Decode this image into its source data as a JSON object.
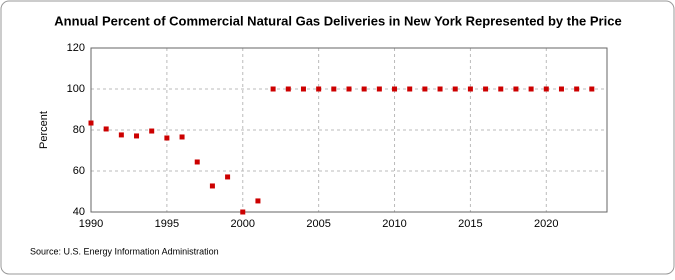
{
  "chart_data": {
    "type": "scatter",
    "title": "Annual Percent of Commercial Natural Gas Deliveries in New York Represented by the Price",
    "y_label": "Percent",
    "source": "Source: U.S. Energy Information Administration",
    "x": [
      1990,
      1991,
      1992,
      1993,
      1994,
      1995,
      1996,
      1997,
      1998,
      1999,
      2000,
      2001,
      2002,
      2003,
      2004,
      2005,
      2006,
      2007,
      2008,
      2009,
      2010,
      2011,
      2012,
      2013,
      2014,
      2015,
      2016,
      2017,
      2018,
      2019,
      2020,
      2021,
      2022,
      2023
    ],
    "values": [
      83.4,
      80.5,
      77.6,
      77.1,
      79.5,
      76.1,
      76.6,
      64.4,
      52.7,
      57.1,
      40,
      45.4,
      100,
      100,
      100,
      100,
      100,
      100,
      100,
      100,
      100,
      100,
      100,
      100,
      100,
      100,
      100,
      100,
      100,
      100,
      100,
      100,
      100,
      100
    ],
    "color": "#cc0000",
    "xlim": [
      1990,
      2024
    ],
    "xticks": [
      1990,
      1995,
      2000,
      2005,
      2010,
      2015,
      2020
    ],
    "ylim": [
      40,
      120
    ],
    "yticks": [
      40,
      60,
      80,
      100,
      120
    ],
    "grid": true
  }
}
